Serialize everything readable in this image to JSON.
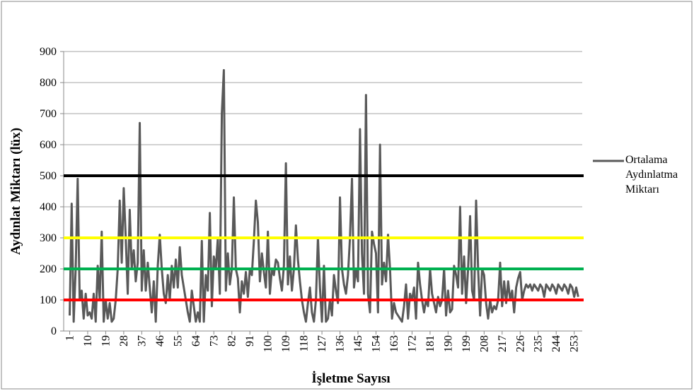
{
  "chart_data": {
    "type": "line",
    "x_label": "İşletme Sayısı",
    "y_label": "Aydınlat Miktarı (lüx)",
    "x": [
      1,
      2,
      3,
      4,
      5,
      6,
      7,
      8,
      9,
      10,
      11,
      12,
      13,
      14,
      15,
      16,
      17,
      18,
      19,
      20,
      21,
      22,
      23,
      24,
      25,
      26,
      27,
      28,
      29,
      30,
      31,
      32,
      33,
      34,
      35,
      36,
      37,
      38,
      39,
      40,
      41,
      42,
      43,
      44,
      45,
      46,
      47,
      48,
      49,
      50,
      51,
      52,
      53,
      54,
      55,
      56,
      57,
      58,
      59,
      60,
      61,
      62,
      63,
      64,
      65,
      66,
      67,
      68,
      69,
      70,
      71,
      72,
      73,
      74,
      75,
      76,
      77,
      78,
      79,
      80,
      81,
      82,
      83,
      84,
      85,
      86,
      87,
      88,
      89,
      90,
      91,
      92,
      93,
      94,
      95,
      96,
      97,
      98,
      99,
      100,
      101,
      102,
      103,
      104,
      105,
      106,
      107,
      108,
      109,
      110,
      111,
      112,
      113,
      114,
      115,
      116,
      117,
      118,
      119,
      120,
      121,
      122,
      123,
      124,
      125,
      126,
      127,
      128,
      129,
      130,
      131,
      132,
      133,
      134,
      135,
      136,
      137,
      138,
      139,
      140,
      141,
      142,
      143,
      144,
      145,
      146,
      147,
      148,
      149,
      150,
      151,
      152,
      153,
      154,
      155,
      156,
      157,
      158,
      159,
      160,
      161,
      162,
      163,
      164,
      165,
      166,
      167,
      168,
      169,
      170,
      171,
      172,
      173,
      174,
      175,
      176,
      177,
      178,
      179,
      180,
      181,
      182,
      183,
      184,
      185,
      186,
      187,
      188,
      189,
      190,
      191,
      192,
      193,
      194,
      195,
      196,
      197,
      198,
      199,
      200,
      201,
      202,
      203,
      204,
      205,
      206,
      207,
      208,
      209,
      210,
      211,
      212,
      213,
      214,
      215,
      216,
      217,
      218,
      219,
      220,
      221,
      222,
      223,
      224,
      225,
      226,
      227,
      228,
      229,
      230,
      231,
      232,
      233,
      234,
      235,
      236,
      237,
      238,
      239,
      240,
      241,
      242,
      243,
      244,
      245,
      246,
      247,
      248,
      249,
      250,
      251,
      252,
      253,
      254,
      255
    ],
    "series": [
      {
        "name": "Ortalama Aydınlatma Miktarı",
        "color": "#595959",
        "values": [
          50,
          410,
          30,
          200,
          490,
          100,
          130,
          40,
          120,
          50,
          60,
          40,
          120,
          30,
          210,
          100,
          320,
          30,
          100,
          40,
          90,
          30,
          40,
          100,
          200,
          420,
          220,
          460,
          300,
          120,
          390,
          200,
          260,
          160,
          220,
          670,
          130,
          260,
          130,
          220,
          140,
          60,
          160,
          30,
          210,
          310,
          200,
          120,
          90,
          180,
          100,
          210,
          140,
          230,
          140,
          270,
          180,
          140,
          100,
          60,
          30,
          130,
          80,
          30,
          60,
          30,
          290,
          30,
          180,
          130,
          380,
          80,
          240,
          200,
          300,
          120,
          700,
          840,
          130,
          250,
          150,
          200,
          430,
          200,
          170,
          60,
          160,
          120,
          190,
          110,
          200,
          180,
          290,
          420,
          350,
          160,
          250,
          190,
          140,
          320,
          120,
          200,
          180,
          230,
          220,
          170,
          130,
          210,
          540,
          150,
          240,
          130,
          200,
          340,
          230,
          160,
          100,
          60,
          30,
          90,
          140,
          60,
          30,
          100,
          300,
          140,
          30,
          210,
          30,
          40,
          100,
          50,
          180,
          130,
          90,
          430,
          200,
          150,
          120,
          180,
          300,
          490,
          140,
          200,
          160,
          650,
          250,
          120,
          760,
          120,
          60,
          320,
          280,
          250,
          60,
          600,
          150,
          220,
          160,
          310,
          200,
          40,
          90,
          60,
          50,
          40,
          30,
          80,
          150,
          40,
          120,
          100,
          140,
          40,
          220,
          150,
          100,
          60,
          100,
          80,
          200,
          120,
          90,
          60,
          110,
          80,
          100,
          200,
          50,
          130,
          60,
          70,
          210,
          180,
          140,
          400,
          120,
          240,
          90,
          200,
          370,
          130,
          100,
          420,
          200,
          50,
          200,
          180,
          90,
          40,
          100,
          60,
          80,
          70,
          100,
          220,
          80,
          160,
          90,
          160,
          100,
          130,
          60,
          140,
          170,
          190,
          100,
          130,
          150,
          140,
          150,
          130,
          150,
          140,
          130,
          150,
          140,
          110,
          150,
          140,
          130,
          150,
          140,
          120,
          150,
          140,
          130,
          150,
          140,
          120,
          150,
          140,
          110,
          140,
          110
        ]
      }
    ],
    "reference_lines": [
      {
        "value": 500,
        "color": "#000000"
      },
      {
        "value": 300,
        "color": "#ffff00"
      },
      {
        "value": 200,
        "color": "#00b050"
      },
      {
        "value": 100,
        "color": "#ff0000"
      }
    ],
    "xlim": [
      -2,
      257
    ],
    "xticks": [
      1,
      10,
      19,
      28,
      37,
      46,
      55,
      64,
      73,
      82,
      91,
      100,
      109,
      118,
      127,
      136,
      145,
      154,
      163,
      172,
      181,
      190,
      199,
      208,
      217,
      226,
      235,
      244,
      253
    ],
    "ylim": [
      0,
      900
    ],
    "yticks": [
      0,
      100,
      200,
      300,
      400,
      500,
      600,
      700,
      800,
      900
    ],
    "grid": true,
    "legend": "right"
  }
}
